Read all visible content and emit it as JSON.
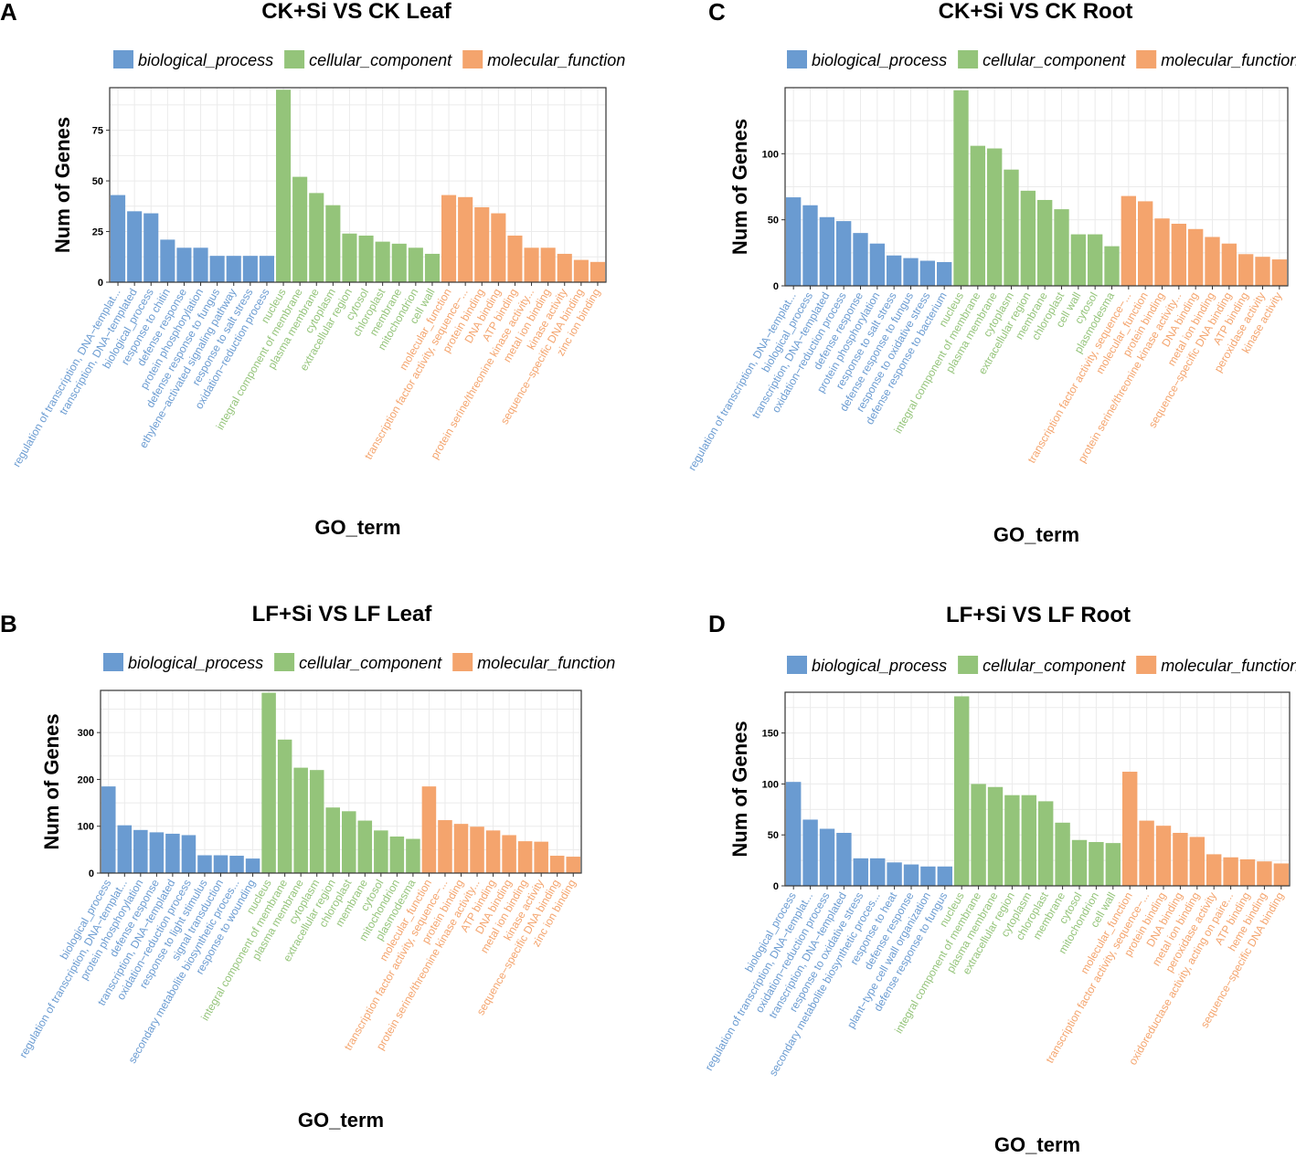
{
  "colors": {
    "biological_process": "#6a9bd1",
    "cellular_component": "#94c47a",
    "molecular_function": "#f4a46d"
  },
  "chart_data": [
    {
      "id": "A",
      "panel_label": "A",
      "type": "bar",
      "title": "CK+Si VS CK Leaf",
      "xlabel": "GO_term",
      "ylabel": "Num of Genes",
      "ylim": [
        0,
        96
      ],
      "yticks": [
        0,
        25,
        50,
        75
      ],
      "legend": [
        "biological_process",
        "cellular_component",
        "molecular_function"
      ],
      "bars": [
        {
          "term": "regulation of transcription, DNA−templat...",
          "group": "biological_process",
          "value": 43
        },
        {
          "term": "transcription, DNA−templated",
          "group": "biological_process",
          "value": 35
        },
        {
          "term": "biological_process",
          "group": "biological_process",
          "value": 34
        },
        {
          "term": "response to chitin",
          "group": "biological_process",
          "value": 21
        },
        {
          "term": "defense response",
          "group": "biological_process",
          "value": 17
        },
        {
          "term": "protein phosphorylation",
          "group": "biological_process",
          "value": 17
        },
        {
          "term": "defense response to fungus",
          "group": "biological_process",
          "value": 13
        },
        {
          "term": "ethylene−activated signaling pathway",
          "group": "biological_process",
          "value": 13
        },
        {
          "term": "response to salt stress",
          "group": "biological_process",
          "value": 13
        },
        {
          "term": "oxidation−reduction process",
          "group": "biological_process",
          "value": 13
        },
        {
          "term": "nucleus",
          "group": "cellular_component",
          "value": 95
        },
        {
          "term": "integral component of membrane",
          "group": "cellular_component",
          "value": 52
        },
        {
          "term": "plasma membrane",
          "group": "cellular_component",
          "value": 44
        },
        {
          "term": "cytoplasm",
          "group": "cellular_component",
          "value": 38
        },
        {
          "term": "extracellular region",
          "group": "cellular_component",
          "value": 24
        },
        {
          "term": "cytosol",
          "group": "cellular_component",
          "value": 23
        },
        {
          "term": "chloroplast",
          "group": "cellular_component",
          "value": 20
        },
        {
          "term": "membrane",
          "group": "cellular_component",
          "value": 19
        },
        {
          "term": "mitochondrion",
          "group": "cellular_component",
          "value": 17
        },
        {
          "term": "cell wall",
          "group": "cellular_component",
          "value": 14
        },
        {
          "term": "molecular_function",
          "group": "molecular_function",
          "value": 43
        },
        {
          "term": "transcription factor activity, sequence−...",
          "group": "molecular_function",
          "value": 42
        },
        {
          "term": "protein binding",
          "group": "molecular_function",
          "value": 37
        },
        {
          "term": "DNA binding",
          "group": "molecular_function",
          "value": 34
        },
        {
          "term": "ATP binding",
          "group": "molecular_function",
          "value": 23
        },
        {
          "term": "protein serine/threonine kinase activity...",
          "group": "molecular_function",
          "value": 17
        },
        {
          "term": "metal ion binding",
          "group": "molecular_function",
          "value": 17
        },
        {
          "term": "kinase activity",
          "group": "molecular_function",
          "value": 14
        },
        {
          "term": "sequence−specific DNA binding",
          "group": "molecular_function",
          "value": 11
        },
        {
          "term": "zinc ion binding",
          "group": "molecular_function",
          "value": 10
        }
      ]
    },
    {
      "id": "B",
      "panel_label": "B",
      "type": "bar",
      "title": "LF+Si VS LF Leaf",
      "xlabel": "GO_term",
      "ylabel": "Num of Genes",
      "ylim": [
        0,
        390
      ],
      "yticks": [
        0,
        100,
        200,
        300
      ],
      "legend": [
        "biological_process",
        "cellular_component",
        "molecular_function"
      ],
      "bars": [
        {
          "term": "biological_process",
          "group": "biological_process",
          "value": 185
        },
        {
          "term": "regulation of transcription, DNA−templat...",
          "group": "biological_process",
          "value": 102
        },
        {
          "term": "protein phosphorylation",
          "group": "biological_process",
          "value": 92
        },
        {
          "term": "defense response",
          "group": "biological_process",
          "value": 87
        },
        {
          "term": "transcription, DNA−templated",
          "group": "biological_process",
          "value": 84
        },
        {
          "term": "oxidation−reduction process",
          "group": "biological_process",
          "value": 81
        },
        {
          "term": "response to light stimulus",
          "group": "biological_process",
          "value": 38
        },
        {
          "term": "signal transduction",
          "group": "biological_process",
          "value": 38
        },
        {
          "term": "secondary metabolite biosynthetic proces...",
          "group": "biological_process",
          "value": 37
        },
        {
          "term": "response to wounding",
          "group": "biological_process",
          "value": 31
        },
        {
          "term": "nucleus",
          "group": "cellular_component",
          "value": 385
        },
        {
          "term": "integral component of membrane",
          "group": "cellular_component",
          "value": 285
        },
        {
          "term": "plasma membrane",
          "group": "cellular_component",
          "value": 225
        },
        {
          "term": "cytoplasm",
          "group": "cellular_component",
          "value": 220
        },
        {
          "term": "extracellular region",
          "group": "cellular_component",
          "value": 140
        },
        {
          "term": "chloroplast",
          "group": "cellular_component",
          "value": 132
        },
        {
          "term": "membrane",
          "group": "cellular_component",
          "value": 112
        },
        {
          "term": "cytosol",
          "group": "cellular_component",
          "value": 91
        },
        {
          "term": "mitochondrion",
          "group": "cellular_component",
          "value": 78
        },
        {
          "term": "plasmodesma",
          "group": "cellular_component",
          "value": 73
        },
        {
          "term": "molecular_function",
          "group": "molecular_function",
          "value": 185
        },
        {
          "term": "transcription factor activity, sequence−...",
          "group": "molecular_function",
          "value": 113
        },
        {
          "term": "protein binding",
          "group": "molecular_function",
          "value": 105
        },
        {
          "term": "protein serine/threonine kinase activity...",
          "group": "molecular_function",
          "value": 99
        },
        {
          "term": "ATP binding",
          "group": "molecular_function",
          "value": 91
        },
        {
          "term": "DNA binding",
          "group": "molecular_function",
          "value": 81
        },
        {
          "term": "metal ion binding",
          "group": "molecular_function",
          "value": 68
        },
        {
          "term": "kinase activity",
          "group": "molecular_function",
          "value": 67
        },
        {
          "term": "sequence−specific DNA binding",
          "group": "molecular_function",
          "value": 37
        },
        {
          "term": "zinc ion binding",
          "group": "molecular_function",
          "value": 35
        }
      ]
    },
    {
      "id": "C",
      "panel_label": "C",
      "type": "bar",
      "title": "CK+Si VS CK Root",
      "xlabel": "GO_term",
      "ylabel": "Num of Genes",
      "ylim": [
        0,
        150
      ],
      "yticks": [
        0,
        50,
        100
      ],
      "legend": [
        "biological_process",
        "cellular_component",
        "molecular_function"
      ],
      "bars": [
        {
          "term": "regulation of transcription, DNA−templat...",
          "group": "biological_process",
          "value": 67
        },
        {
          "term": "biological_process",
          "group": "biological_process",
          "value": 61
        },
        {
          "term": "transcription, DNA−templated",
          "group": "biological_process",
          "value": 52
        },
        {
          "term": "oxidation−reduction process",
          "group": "biological_process",
          "value": 49
        },
        {
          "term": "defense response",
          "group": "biological_process",
          "value": 40
        },
        {
          "term": "protein phosphorylation",
          "group": "biological_process",
          "value": 32
        },
        {
          "term": "response to salt stress",
          "group": "biological_process",
          "value": 23
        },
        {
          "term": "defense response to fungus",
          "group": "biological_process",
          "value": 21
        },
        {
          "term": "response to oxidative stress",
          "group": "biological_process",
          "value": 19
        },
        {
          "term": "defense response to bacterium",
          "group": "biological_process",
          "value": 18
        },
        {
          "term": "nucleus",
          "group": "cellular_component",
          "value": 148
        },
        {
          "term": "integral component of membrane",
          "group": "cellular_component",
          "value": 106
        },
        {
          "term": "plasma membrane",
          "group": "cellular_component",
          "value": 104
        },
        {
          "term": "cytoplasm",
          "group": "cellular_component",
          "value": 88
        },
        {
          "term": "extracellular region",
          "group": "cellular_component",
          "value": 72
        },
        {
          "term": "membrane",
          "group": "cellular_component",
          "value": 65
        },
        {
          "term": "chloroplast",
          "group": "cellular_component",
          "value": 58
        },
        {
          "term": "cell wall",
          "group": "cellular_component",
          "value": 39
        },
        {
          "term": "cytosol",
          "group": "cellular_component",
          "value": 39
        },
        {
          "term": "plasmodesma",
          "group": "cellular_component",
          "value": 30
        },
        {
          "term": "transcription factor activity, sequence−...",
          "group": "molecular_function",
          "value": 68
        },
        {
          "term": "molecular_function",
          "group": "molecular_function",
          "value": 64
        },
        {
          "term": "protein binding",
          "group": "molecular_function",
          "value": 51
        },
        {
          "term": "protein serine/threonine kinase activity...",
          "group": "molecular_function",
          "value": 47
        },
        {
          "term": "DNA binding",
          "group": "molecular_function",
          "value": 43
        },
        {
          "term": "metal ion binding",
          "group": "molecular_function",
          "value": 37
        },
        {
          "term": "sequence−specific DNA binding",
          "group": "molecular_function",
          "value": 32
        },
        {
          "term": "ATP binding",
          "group": "molecular_function",
          "value": 24
        },
        {
          "term": "peroxidase activity",
          "group": "molecular_function",
          "value": 22
        },
        {
          "term": "kinase activity",
          "group": "molecular_function",
          "value": 20
        }
      ]
    },
    {
      "id": "D",
      "panel_label": "D",
      "type": "bar",
      "title": "LF+Si VS LF Root",
      "xlabel": "GO_term",
      "ylabel": "Num of Genes",
      "ylim": [
        0,
        190
      ],
      "yticks": [
        0,
        50,
        100,
        150
      ],
      "legend": [
        "biological_process",
        "cellular_component",
        "molecular_function"
      ],
      "bars": [
        {
          "term": "biological_process",
          "group": "biological_process",
          "value": 102
        },
        {
          "term": "regulation of transcription, DNA−templat...",
          "group": "biological_process",
          "value": 65
        },
        {
          "term": "oxidation−reduction process",
          "group": "biological_process",
          "value": 56
        },
        {
          "term": "transcription, DNA−templated",
          "group": "biological_process",
          "value": 52
        },
        {
          "term": "response to oxidative stress",
          "group": "biological_process",
          "value": 27
        },
        {
          "term": "secondary metabolite biosynthetic proces...",
          "group": "biological_process",
          "value": 27
        },
        {
          "term": "response to heat",
          "group": "biological_process",
          "value": 23
        },
        {
          "term": "defense response",
          "group": "biological_process",
          "value": 21
        },
        {
          "term": "plant−type cell wall organization",
          "group": "biological_process",
          "value": 19
        },
        {
          "term": "defense response to fungus",
          "group": "biological_process",
          "value": 19
        },
        {
          "term": "nucleus",
          "group": "cellular_component",
          "value": 186
        },
        {
          "term": "integral component of membrane",
          "group": "cellular_component",
          "value": 100
        },
        {
          "term": "plasma membrane",
          "group": "cellular_component",
          "value": 97
        },
        {
          "term": "extracellular region",
          "group": "cellular_component",
          "value": 89
        },
        {
          "term": "cytoplasm",
          "group": "cellular_component",
          "value": 89
        },
        {
          "term": "chloroplast",
          "group": "cellular_component",
          "value": 83
        },
        {
          "term": "membrane",
          "group": "cellular_component",
          "value": 62
        },
        {
          "term": "cytosol",
          "group": "cellular_component",
          "value": 45
        },
        {
          "term": "mitochondrion",
          "group": "cellular_component",
          "value": 43
        },
        {
          "term": "cell wall",
          "group": "cellular_component",
          "value": 42
        },
        {
          "term": "molecular_function",
          "group": "molecular_function",
          "value": 112
        },
        {
          "term": "transcription factor activity, sequence−...",
          "group": "molecular_function",
          "value": 64
        },
        {
          "term": "protein binding",
          "group": "molecular_function",
          "value": 59
        },
        {
          "term": "DNA binding",
          "group": "molecular_function",
          "value": 52
        },
        {
          "term": "metal ion binding",
          "group": "molecular_function",
          "value": 48
        },
        {
          "term": "peroxidase activity",
          "group": "molecular_function",
          "value": 31
        },
        {
          "term": "oxidoreductase activity, acting on paire...",
          "group": "molecular_function",
          "value": 28
        },
        {
          "term": "ATP binding",
          "group": "molecular_function",
          "value": 26
        },
        {
          "term": "heme binding",
          "group": "molecular_function",
          "value": 24
        },
        {
          "term": "sequence−specific DNA binding",
          "group": "molecular_function",
          "value": 22
        }
      ]
    }
  ]
}
